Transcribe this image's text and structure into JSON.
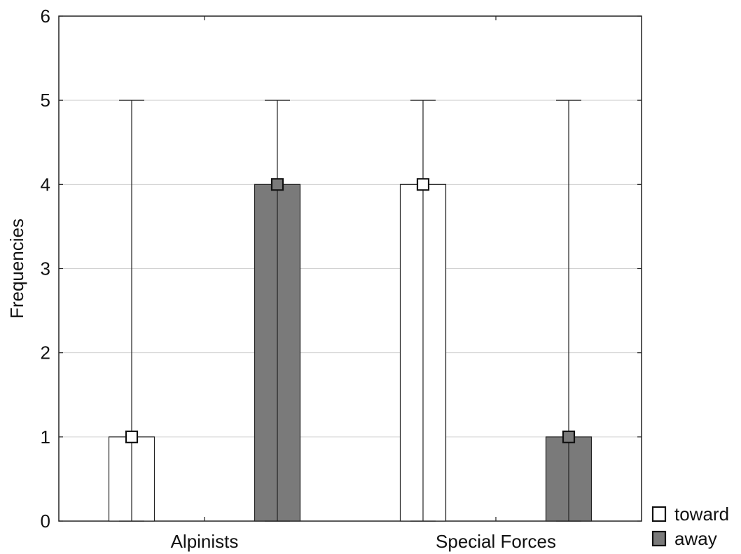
{
  "chart_data": {
    "type": "bar",
    "categories": [
      "Alpinists",
      "Special Forces"
    ],
    "series": [
      {
        "name": "toward",
        "values": [
          1,
          4
        ],
        "error_low": [
          0,
          0
        ],
        "error_high": [
          5,
          5
        ],
        "color": "#ffffff"
      },
      {
        "name": "away",
        "values": [
          4,
          1
        ],
        "error_low": [
          0,
          0
        ],
        "error_high": [
          5,
          5
        ],
        "color": "#7a7a7a"
      }
    ],
    "xlabel": "",
    "ylabel": "Frequencies",
    "ylim": [
      0,
      6
    ],
    "yticks": [
      "0",
      "1",
      "2",
      "3",
      "4",
      "5",
      "6"
    ],
    "grid": true,
    "legend_position": "bottom-right, outside plot"
  }
}
